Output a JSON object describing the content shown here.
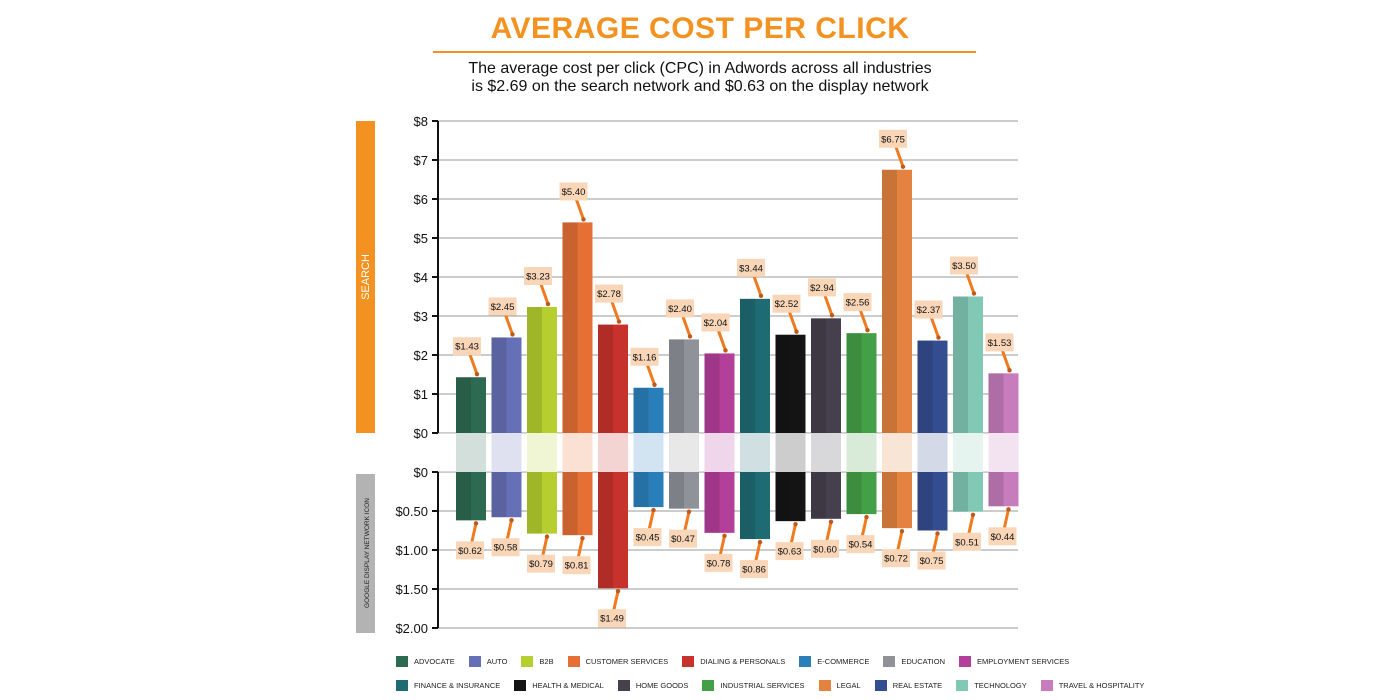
{
  "title": "AVERAGE COST PER CLICK",
  "subtitle_line1": "The average cost per click (CPC) in Adwords across all industries",
  "subtitle_line2": "is $2.69 on  the search network and $0.63 on the display network",
  "colors": {
    "accent": "#f39221",
    "gray_panel": "#b3b3b3",
    "label_box": "#f9d6b8",
    "pin": "#f07a1e"
  },
  "side_labels": {
    "search": "SEARCH",
    "display": "GOOGLE DISPLAY NETWORK ICON"
  },
  "chart_data": {
    "type": "bar",
    "title": "AVERAGE COST PER CLICK",
    "categories": [
      "ADVOCATE",
      "AUTO",
      "B2B",
      "CUSTOMER SERVICES",
      "DIALING & PERSONALS",
      "E-COMMERCE",
      "EDUCATION",
      "EMPLOYMENT SERVICES",
      "FINANCE & INSURANCE",
      "HEALTH & MEDICAL",
      "HOME GOODS",
      "INDUSTRIAL SERVICES",
      "LEGAL",
      "REAL ESTATE",
      "TECHNOLOGY",
      "TRAVEL & HOSPITALITY"
    ],
    "colors": [
      "#2e6a52",
      "#6670b6",
      "#b6cf2f",
      "#e56f35",
      "#c8322c",
      "#2a7fba",
      "#8f9299",
      "#b43f9a",
      "#1f6b73",
      "#141414",
      "#46404e",
      "#44a047",
      "#e3833f",
      "#344c90",
      "#82c9b5",
      "#c77cbd"
    ],
    "series": [
      {
        "name": "SEARCH",
        "values": [
          1.43,
          2.45,
          3.23,
          5.4,
          2.78,
          1.16,
          2.4,
          2.04,
          3.44,
          2.52,
          2.94,
          2.56,
          6.75,
          2.37,
          3.5,
          1.53
        ]
      },
      {
        "name": "GOOGLE DISPLAY NETWORK ICON",
        "values": [
          0.62,
          0.58,
          0.79,
          0.81,
          1.49,
          0.45,
          0.47,
          0.78,
          0.86,
          0.63,
          0.6,
          0.54,
          0.72,
          0.75,
          0.51,
          0.44
        ]
      }
    ],
    "data_labels_search": [
      "$1.43",
      "$2.45",
      "$3.23",
      "$5.40",
      "$2.78",
      "$1.16",
      "$2.40",
      "$2.04",
      "$3.44",
      "$2.52",
      "$2.94",
      "$2.56",
      "$6.75",
      "$2.37",
      "$3.50",
      "$1.53"
    ],
    "data_labels_display": [
      "$0.62",
      "$0.58",
      "$0.79",
      "$0.81",
      "$1.49",
      "$0.45",
      "$0.47",
      "$0.78",
      "$0.86",
      "$0.63",
      "$0.60",
      "$0.54",
      "$0.72",
      "$0.75",
      "$0.51",
      "$0.44"
    ],
    "search_axis": {
      "ticks": [
        "$8",
        "$7",
        "$6",
        "$5",
        "$4",
        "$3",
        "$2",
        "$1",
        "$0"
      ],
      "ylim": [
        0,
        8
      ]
    },
    "display_axis": {
      "ticks": [
        "$0",
        "$0.50",
        "$1.00",
        "$1.50",
        "$2.00"
      ],
      "ylim": [
        0,
        2
      ]
    },
    "grid": true,
    "legend_position": "bottom"
  }
}
